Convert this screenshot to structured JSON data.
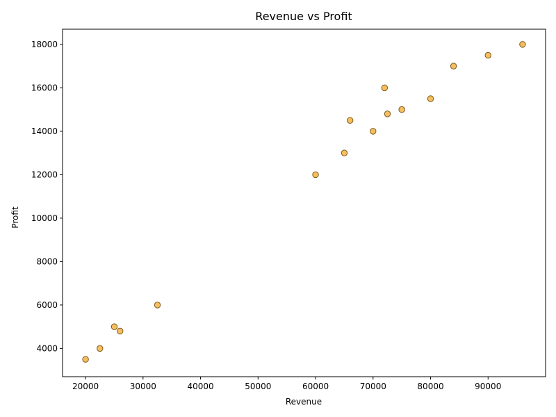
{
  "chart_data": {
    "type": "scatter",
    "title": "Revenue vs Profit",
    "xlabel": "Revenue",
    "ylabel": "Profit",
    "xlim": [
      16000,
      100000
    ],
    "ylim": [
      2700,
      18700
    ],
    "xticks": [
      20000,
      30000,
      40000,
      50000,
      60000,
      70000,
      80000,
      90000
    ],
    "yticks": [
      4000,
      6000,
      8000,
      10000,
      12000,
      14000,
      16000,
      18000
    ],
    "grid": false,
    "marker_color": "#f5b342",
    "marker_edge_color": "#7a5a1e",
    "points": [
      {
        "x": 20000,
        "y": 3500
      },
      {
        "x": 22500,
        "y": 4000
      },
      {
        "x": 25000,
        "y": 5000
      },
      {
        "x": 26000,
        "y": 4800
      },
      {
        "x": 32500,
        "y": 6000
      },
      {
        "x": 60000,
        "y": 12000
      },
      {
        "x": 65000,
        "y": 13000
      },
      {
        "x": 66000,
        "y": 14500
      },
      {
        "x": 70000,
        "y": 14000
      },
      {
        "x": 72000,
        "y": 16000
      },
      {
        "x": 72500,
        "y": 14800
      },
      {
        "x": 75000,
        "y": 15000
      },
      {
        "x": 80000,
        "y": 15500
      },
      {
        "x": 84000,
        "y": 17000
      },
      {
        "x": 90000,
        "y": 17500
      },
      {
        "x": 96000,
        "y": 18000
      }
    ]
  }
}
